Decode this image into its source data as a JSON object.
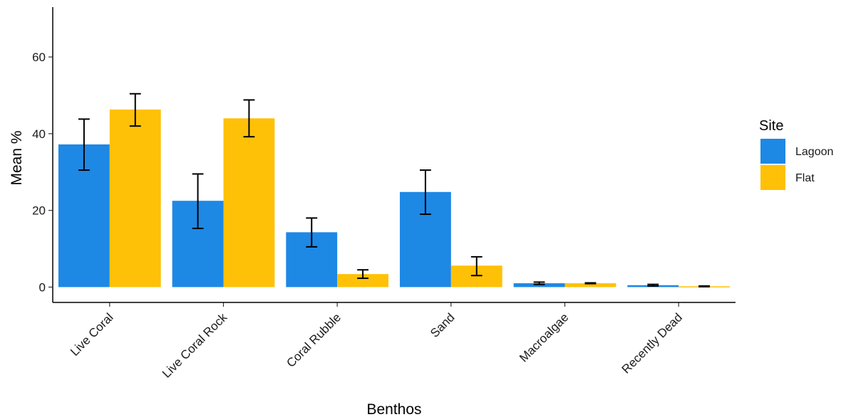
{
  "chart_data": {
    "type": "bar",
    "xlabel": "Benthos",
    "ylabel": "Mean %",
    "ylim": [
      -4,
      73
    ],
    "yticks": [
      0,
      20,
      40,
      60
    ],
    "categories": [
      "Live Coral",
      "Live Coral Rock",
      "Coral Rubble",
      "Sand",
      "Macroalgae",
      "Recently Dead"
    ],
    "series": [
      {
        "name": "Lagoon",
        "color": "#1e88e5",
        "values": [
          37.2,
          22.5,
          14.3,
          24.8,
          1.0,
          0.5
        ],
        "err_low": [
          30.5,
          15.3,
          10.5,
          19.0,
          0.7,
          0.3
        ],
        "err_high": [
          43.8,
          29.5,
          18.0,
          30.5,
          1.3,
          0.7
        ]
      },
      {
        "name": "Flat",
        "color": "#ffc107",
        "values": [
          46.3,
          44.0,
          3.4,
          5.6,
          1.0,
          0.2
        ],
        "err_low": [
          42.0,
          39.2,
          2.3,
          3.0,
          0.9,
          0.1
        ],
        "err_high": [
          50.4,
          48.8,
          4.5,
          7.9,
          1.1,
          0.3
        ]
      }
    ],
    "legend": {
      "title": "Site",
      "position": "right"
    },
    "grid": false
  }
}
